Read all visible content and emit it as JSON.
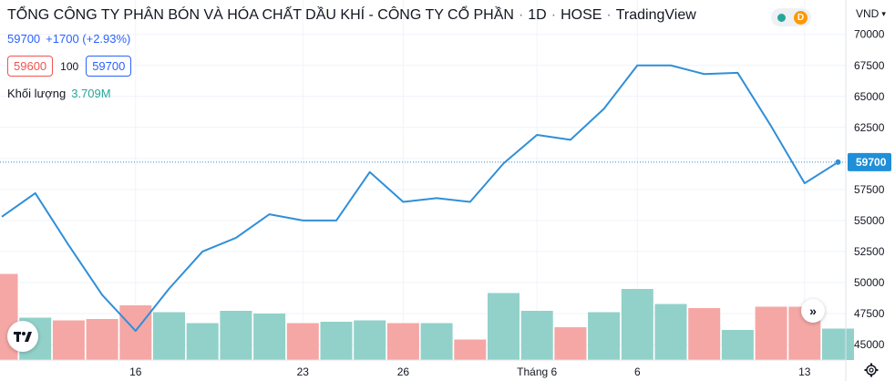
{
  "header": {
    "title": "TỔNG CÔNG TY PHÂN BÓN VÀ HÓA CHẤT DẦU KHÍ - CÔNG TY CỔ PHẦN",
    "interval": "1D",
    "exchange": "HOSE",
    "source": "TradingView",
    "status_letter": "D"
  },
  "quote": {
    "price": "59700",
    "change": "+1700 (+2.93%)",
    "bid": "59600",
    "spread": "100",
    "ask": "59700",
    "volume_label": "Khối lượng",
    "volume_value": "3.709M"
  },
  "axis": {
    "currency": "VND"
  },
  "icons": {
    "logo": "tradingview-logo-icon",
    "scroll": "scroll-to-realtime-icon",
    "settings": "gear-icon",
    "currency_dropdown": "chevron-down-icon"
  },
  "colors": {
    "line": "#2f8fd8",
    "volume_up": "#91d1c9",
    "volume_down": "#f5a7a5",
    "last_price_label": "#1f8fd8",
    "grid": "#f0f3fa"
  },
  "chart_data": {
    "type": "line",
    "price_series": [
      55300,
      57200,
      53000,
      49000,
      46100,
      49500,
      52500,
      53600,
      55500,
      55000,
      55000,
      58900,
      56500,
      56800,
      56500,
      59600,
      61900,
      61500,
      64000,
      67500,
      67500,
      66800,
      66900,
      62600,
      58000,
      59700
    ],
    "volume_series": [
      {
        "level": 0.63,
        "up": false
      },
      {
        "level": 0.31,
        "up": true
      },
      {
        "level": 0.29,
        "up": false
      },
      {
        "level": 0.3,
        "up": false
      },
      {
        "level": 0.4,
        "up": false
      },
      {
        "level": 0.35,
        "up": true
      },
      {
        "level": 0.27,
        "up": true
      },
      {
        "level": 0.36,
        "up": true
      },
      {
        "level": 0.34,
        "up": true
      },
      {
        "level": 0.27,
        "up": false
      },
      {
        "level": 0.28,
        "up": true
      },
      {
        "level": 0.29,
        "up": true
      },
      {
        "level": 0.27,
        "up": false
      },
      {
        "level": 0.27,
        "up": true
      },
      {
        "level": 0.15,
        "up": false
      },
      {
        "level": 0.49,
        "up": true
      },
      {
        "level": 0.36,
        "up": true
      },
      {
        "level": 0.24,
        "up": false
      },
      {
        "level": 0.35,
        "up": true
      },
      {
        "level": 0.52,
        "up": true
      },
      {
        "level": 0.41,
        "up": true
      },
      {
        "level": 0.38,
        "up": false
      },
      {
        "level": 0.22,
        "up": true
      },
      {
        "level": 0.39,
        "up": false
      },
      {
        "level": 0.39,
        "up": false
      },
      {
        "level": 0.23,
        "up": true
      }
    ],
    "y_ticks": [
      45000,
      47500,
      50000,
      52500,
      55000,
      57500,
      60000,
      62500,
      65000,
      67500,
      70000
    ],
    "y_tick_labels": [
      "45000",
      "47500",
      "50000",
      "52500",
      "55000",
      "57500",
      "",
      "62500",
      "65000",
      "67500",
      "70000"
    ],
    "ylim": [
      45000,
      70200
    ],
    "x_ticks": [
      {
        "index": 4,
        "label": "16"
      },
      {
        "index": 9,
        "label": "23"
      },
      {
        "index": 12,
        "label": "26"
      },
      {
        "index": 16,
        "label": "Tháng 6"
      },
      {
        "index": 19,
        "label": "6"
      },
      {
        "index": 24,
        "label": "13"
      }
    ],
    "last_price": 59700,
    "last_price_label": "59700",
    "grid": true
  }
}
